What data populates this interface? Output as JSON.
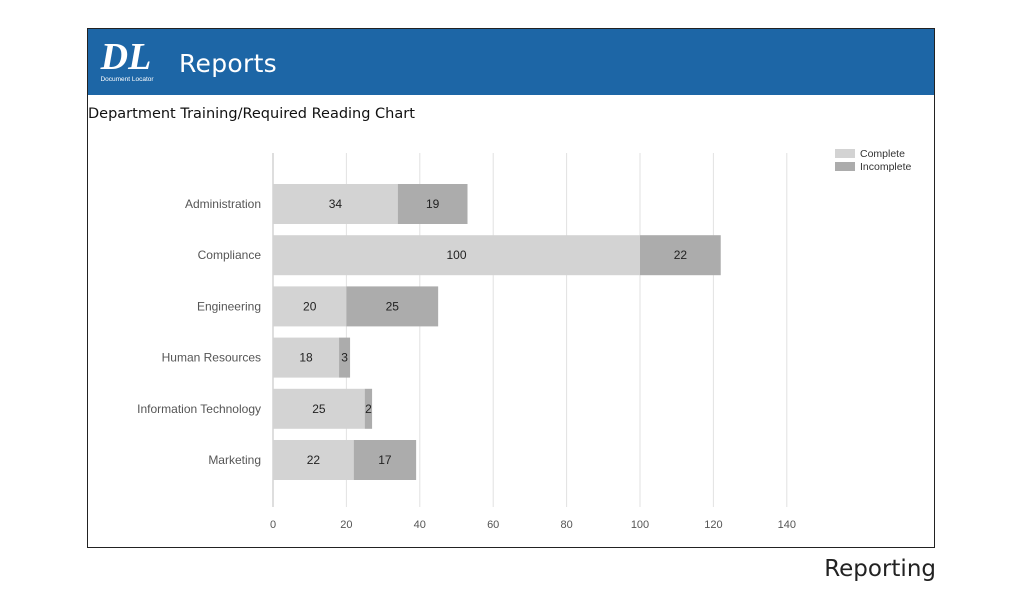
{
  "header": {
    "logo_mark": "DL",
    "logo_subtext": "Document Locator",
    "title": "Reports",
    "background": "#1d66a6"
  },
  "caption": "Reporting",
  "chart_data": {
    "type": "bar",
    "orientation": "horizontal",
    "stacked": true,
    "title": "Department Training/Required Reading Chart",
    "categories": [
      "Administration",
      "Compliance",
      "Engineering",
      "Human Resources",
      "Information Technology",
      "Marketing"
    ],
    "series": [
      {
        "name": "Complete",
        "values": [
          34,
          100,
          20,
          18,
          25,
          22
        ],
        "color": "#d3d3d3"
      },
      {
        "name": "Incomplete",
        "values": [
          19,
          22,
          25,
          3,
          2,
          17
        ],
        "color": "#acacac"
      }
    ],
    "xticks": [
      0,
      20,
      40,
      60,
      80,
      100,
      120,
      140
    ],
    "xlim": [
      0,
      140
    ],
    "grid": true,
    "legend": "top-right",
    "xlabel": "",
    "ylabel": ""
  }
}
